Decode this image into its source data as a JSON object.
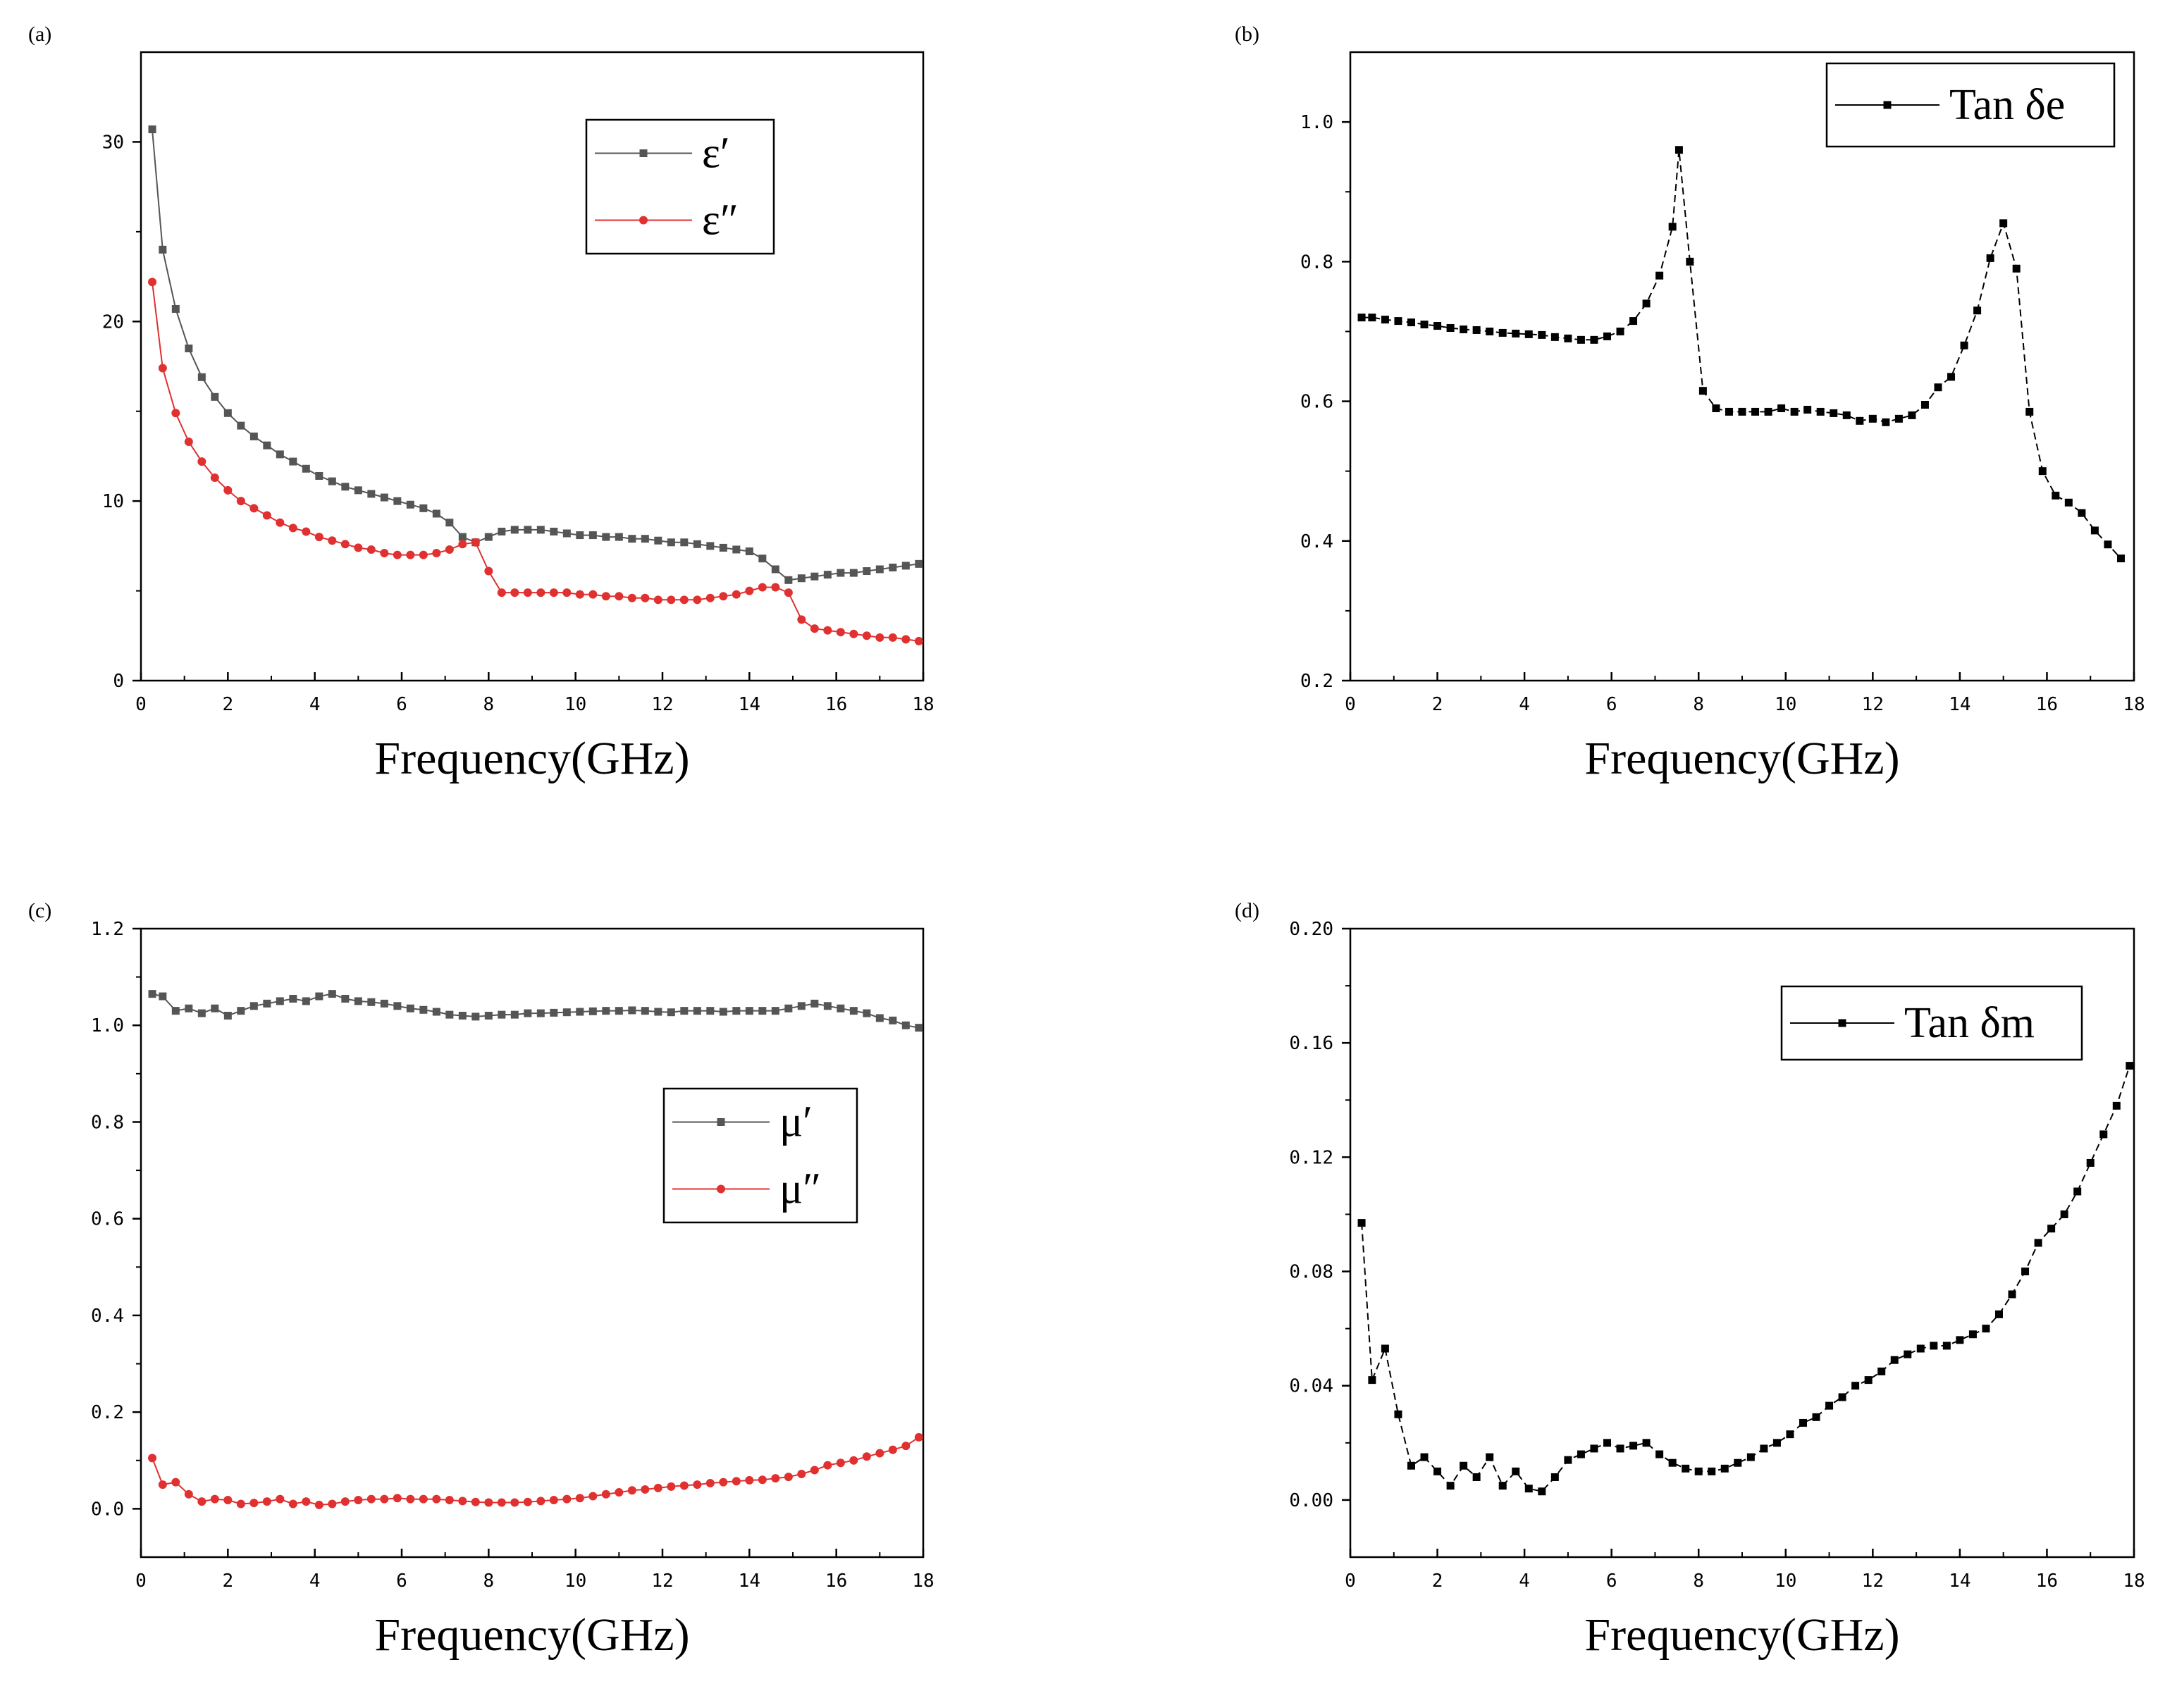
{
  "figure": {
    "colors": {
      "black_series": "#555555",
      "red_series": "#e03030",
      "axis": "#000000",
      "solid_black": "#000000"
    }
  },
  "chart_data": [
    {
      "panel_label": "(a)",
      "type": "line",
      "xlabel": "Frequency(GHz)",
      "ylabel": "",
      "xlim": [
        0,
        18
      ],
      "ylim": [
        0,
        35
      ],
      "xticks": [
        "0",
        "2",
        "4",
        "6",
        "8",
        "10",
        "12",
        "14",
        "16",
        "18"
      ],
      "yticks": [
        "0",
        "10",
        "20",
        "30"
      ],
      "legend_position": "top-center",
      "series": [
        {
          "name": "ε′",
          "color": "#555555",
          "marker": "square",
          "x": [
            0.26,
            0.5,
            0.8,
            1.1,
            1.4,
            1.7,
            2.0,
            2.3,
            2.6,
            2.9,
            3.2,
            3.5,
            3.8,
            4.1,
            4.4,
            4.7,
            5.0,
            5.3,
            5.6,
            5.9,
            6.2,
            6.5,
            6.8,
            7.1,
            7.4,
            7.7,
            8.0,
            8.3,
            8.6,
            8.9,
            9.2,
            9.5,
            9.8,
            10.1,
            10.4,
            10.7,
            11.0,
            11.3,
            11.6,
            11.9,
            12.2,
            12.5,
            12.8,
            13.1,
            13.4,
            13.7,
            14.0,
            14.3,
            14.6,
            14.9,
            15.2,
            15.5,
            15.8,
            16.1,
            16.4,
            16.7,
            17.0,
            17.3,
            17.6,
            17.9
          ],
          "values": [
            30.7,
            24.0,
            20.7,
            18.5,
            16.9,
            15.8,
            14.9,
            14.2,
            13.6,
            13.1,
            12.6,
            12.2,
            11.8,
            11.4,
            11.1,
            10.8,
            10.6,
            10.4,
            10.2,
            10.0,
            9.8,
            9.6,
            9.3,
            8.8,
            8.0,
            7.7,
            8.0,
            8.3,
            8.4,
            8.4,
            8.4,
            8.3,
            8.2,
            8.1,
            8.1,
            8.0,
            8.0,
            7.9,
            7.9,
            7.8,
            7.7,
            7.7,
            7.6,
            7.5,
            7.4,
            7.3,
            7.2,
            6.8,
            6.2,
            5.6,
            5.7,
            5.8,
            5.9,
            6.0,
            6.0,
            6.1,
            6.2,
            6.3,
            6.4,
            6.5
          ]
        },
        {
          "name": "ε″",
          "color": "#e03030",
          "marker": "circle",
          "x": [
            0.26,
            0.5,
            0.8,
            1.1,
            1.4,
            1.7,
            2.0,
            2.3,
            2.6,
            2.9,
            3.2,
            3.5,
            3.8,
            4.1,
            4.4,
            4.7,
            5.0,
            5.3,
            5.6,
            5.9,
            6.2,
            6.5,
            6.8,
            7.1,
            7.4,
            7.7,
            8.0,
            8.3,
            8.6,
            8.9,
            9.2,
            9.5,
            9.8,
            10.1,
            10.4,
            10.7,
            11.0,
            11.3,
            11.6,
            11.9,
            12.2,
            12.5,
            12.8,
            13.1,
            13.4,
            13.7,
            14.0,
            14.3,
            14.6,
            14.9,
            15.2,
            15.5,
            15.8,
            16.1,
            16.4,
            16.7,
            17.0,
            17.3,
            17.6,
            17.9
          ],
          "values": [
            22.2,
            17.4,
            14.9,
            13.3,
            12.2,
            11.3,
            10.6,
            10.0,
            9.6,
            9.2,
            8.8,
            8.5,
            8.3,
            8.0,
            7.8,
            7.6,
            7.4,
            7.3,
            7.1,
            7.0,
            7.0,
            7.0,
            7.1,
            7.3,
            7.6,
            7.7,
            6.1,
            4.9,
            4.9,
            4.9,
            4.9,
            4.9,
            4.9,
            4.8,
            4.8,
            4.7,
            4.7,
            4.6,
            4.6,
            4.5,
            4.5,
            4.5,
            4.5,
            4.6,
            4.7,
            4.8,
            5.0,
            5.2,
            5.2,
            4.9,
            3.4,
            2.9,
            2.8,
            2.7,
            2.6,
            2.5,
            2.4,
            2.4,
            2.3,
            2.2
          ]
        }
      ]
    },
    {
      "panel_label": "(b)",
      "type": "line",
      "xlabel": "Frequency(GHz)",
      "ylabel": "",
      "xlim": [
        0,
        18
      ],
      "ylim": [
        0.2,
        1.1
      ],
      "xticks": [
        "0",
        "2",
        "4",
        "6",
        "8",
        "10",
        "12",
        "14",
        "16",
        "18"
      ],
      "yticks": [
        "0.2",
        "0.4",
        "0.6",
        "0.8",
        "1.0"
      ],
      "legend_position": "top-right",
      "series": [
        {
          "name": "Tan δe",
          "color": "#000000",
          "marker": "square",
          "x": [
            0.26,
            0.5,
            0.8,
            1.1,
            1.4,
            1.7,
            2.0,
            2.3,
            2.6,
            2.9,
            3.2,
            3.5,
            3.8,
            4.1,
            4.4,
            4.7,
            5.0,
            5.3,
            5.6,
            5.9,
            6.2,
            6.5,
            6.8,
            7.1,
            7.4,
            7.55,
            7.8,
            8.1,
            8.4,
            8.7,
            9.0,
            9.3,
            9.6,
            9.9,
            10.2,
            10.5,
            10.8,
            11.1,
            11.4,
            11.7,
            12.0,
            12.3,
            12.6,
            12.9,
            13.2,
            13.5,
            13.8,
            14.1,
            14.4,
            14.7,
            15.0,
            15.3,
            15.6,
            15.9,
            16.2,
            16.5,
            16.8,
            17.1,
            17.4,
            17.7
          ],
          "values": [
            0.72,
            0.72,
            0.717,
            0.715,
            0.713,
            0.71,
            0.708,
            0.705,
            0.703,
            0.702,
            0.7,
            0.698,
            0.697,
            0.696,
            0.695,
            0.692,
            0.69,
            0.688,
            0.688,
            0.693,
            0.7,
            0.715,
            0.74,
            0.78,
            0.85,
            0.96,
            0.8,
            0.615,
            0.59,
            0.585,
            0.585,
            0.585,
            0.585,
            0.59,
            0.585,
            0.588,
            0.585,
            0.583,
            0.58,
            0.572,
            0.575,
            0.57,
            0.575,
            0.58,
            0.595,
            0.62,
            0.635,
            0.68,
            0.73,
            0.805,
            0.855,
            0.79,
            0.585,
            0.5,
            0.465,
            0.455,
            0.44,
            0.415,
            0.395,
            0.375
          ]
        }
      ]
    },
    {
      "panel_label": "(c)",
      "type": "line",
      "xlabel": "Frequency(GHz)",
      "ylabel": "",
      "xlim": [
        0,
        18
      ],
      "ylim": [
        -0.1,
        1.2
      ],
      "xticks": [
        "0",
        "2",
        "4",
        "6",
        "8",
        "10",
        "12",
        "14",
        "16",
        "18"
      ],
      "yticks": [
        "0.0",
        "0.2",
        "0.4",
        "0.6",
        "0.8",
        "1.0",
        "1.2"
      ],
      "legend_position": "center-right",
      "series": [
        {
          "name": "μ′",
          "color": "#555555",
          "marker": "square",
          "x": [
            0.26,
            0.5,
            0.8,
            1.1,
            1.4,
            1.7,
            2.0,
            2.3,
            2.6,
            2.9,
            3.2,
            3.5,
            3.8,
            4.1,
            4.4,
            4.7,
            5.0,
            5.3,
            5.6,
            5.9,
            6.2,
            6.5,
            6.8,
            7.1,
            7.4,
            7.7,
            8.0,
            8.3,
            8.6,
            8.9,
            9.2,
            9.5,
            9.8,
            10.1,
            10.4,
            10.7,
            11.0,
            11.3,
            11.6,
            11.9,
            12.2,
            12.5,
            12.8,
            13.1,
            13.4,
            13.7,
            14.0,
            14.3,
            14.6,
            14.9,
            15.2,
            15.5,
            15.8,
            16.1,
            16.4,
            16.7,
            17.0,
            17.3,
            17.6,
            17.9
          ],
          "values": [
            1.065,
            1.06,
            1.03,
            1.035,
            1.025,
            1.035,
            1.02,
            1.03,
            1.04,
            1.045,
            1.05,
            1.055,
            1.05,
            1.06,
            1.065,
            1.055,
            1.05,
            1.048,
            1.045,
            1.04,
            1.035,
            1.032,
            1.028,
            1.022,
            1.02,
            1.018,
            1.02,
            1.022,
            1.022,
            1.025,
            1.025,
            1.026,
            1.027,
            1.028,
            1.029,
            1.03,
            1.03,
            1.031,
            1.03,
            1.028,
            1.027,
            1.03,
            1.03,
            1.03,
            1.028,
            1.03,
            1.03,
            1.03,
            1.03,
            1.035,
            1.04,
            1.045,
            1.04,
            1.035,
            1.03,
            1.025,
            1.015,
            1.01,
            1.0,
            0.995
          ]
        },
        {
          "name": "μ″",
          "color": "#e03030",
          "marker": "circle",
          "x": [
            0.26,
            0.5,
            0.8,
            1.1,
            1.4,
            1.7,
            2.0,
            2.3,
            2.6,
            2.9,
            3.2,
            3.5,
            3.8,
            4.1,
            4.4,
            4.7,
            5.0,
            5.3,
            5.6,
            5.9,
            6.2,
            6.5,
            6.8,
            7.1,
            7.4,
            7.7,
            8.0,
            8.3,
            8.6,
            8.9,
            9.2,
            9.5,
            9.8,
            10.1,
            10.4,
            10.7,
            11.0,
            11.3,
            11.6,
            11.9,
            12.2,
            12.5,
            12.8,
            13.1,
            13.4,
            13.7,
            14.0,
            14.3,
            14.6,
            14.9,
            15.2,
            15.5,
            15.8,
            16.1,
            16.4,
            16.7,
            17.0,
            17.3,
            17.6,
            17.9
          ],
          "values": [
            0.105,
            0.05,
            0.055,
            0.03,
            0.015,
            0.02,
            0.018,
            0.01,
            0.012,
            0.015,
            0.02,
            0.01,
            0.015,
            0.008,
            0.01,
            0.015,
            0.018,
            0.02,
            0.02,
            0.022,
            0.02,
            0.02,
            0.02,
            0.018,
            0.016,
            0.014,
            0.013,
            0.013,
            0.013,
            0.014,
            0.016,
            0.018,
            0.02,
            0.022,
            0.026,
            0.03,
            0.034,
            0.038,
            0.04,
            0.043,
            0.046,
            0.048,
            0.05,
            0.053,
            0.055,
            0.057,
            0.059,
            0.06,
            0.063,
            0.066,
            0.072,
            0.08,
            0.09,
            0.095,
            0.1,
            0.108,
            0.115,
            0.122,
            0.13,
            0.148
          ]
        }
      ]
    },
    {
      "panel_label": "(d)",
      "type": "line",
      "xlabel": "Frequency(GHz)",
      "ylabel": "",
      "xlim": [
        0,
        18
      ],
      "ylim": [
        -0.02,
        0.2
      ],
      "xticks": [
        "0",
        "2",
        "4",
        "6",
        "8",
        "10",
        "12",
        "14",
        "16",
        "18"
      ],
      "yticks": [
        "0.00",
        "0.04",
        "0.08",
        "0.12",
        "0.16",
        "0.20"
      ],
      "legend_position": "top-right",
      "series": [
        {
          "name": "Tan δm",
          "color": "#000000",
          "marker": "square",
          "x": [
            0.26,
            0.5,
            0.8,
            1.1,
            1.4,
            1.7,
            2.0,
            2.3,
            2.6,
            2.9,
            3.2,
            3.5,
            3.8,
            4.1,
            4.4,
            4.7,
            5.0,
            5.3,
            5.6,
            5.9,
            6.2,
            6.5,
            6.8,
            7.1,
            7.4,
            7.7,
            8.0,
            8.3,
            8.6,
            8.9,
            9.2,
            9.5,
            9.8,
            10.1,
            10.4,
            10.7,
            11.0,
            11.3,
            11.6,
            11.9,
            12.2,
            12.5,
            12.8,
            13.1,
            13.4,
            13.7,
            14.0,
            14.3,
            14.6,
            14.9,
            15.2,
            15.5,
            15.8,
            16.1,
            16.4,
            16.7,
            17.0,
            17.3,
            17.6,
            17.9
          ],
          "values": [
            0.097,
            0.042,
            0.053,
            0.03,
            0.012,
            0.015,
            0.01,
            0.005,
            0.012,
            0.008,
            0.015,
            0.005,
            0.01,
            0.004,
            0.003,
            0.008,
            0.014,
            0.016,
            0.018,
            0.02,
            0.018,
            0.019,
            0.02,
            0.016,
            0.013,
            0.011,
            0.01,
            0.01,
            0.011,
            0.013,
            0.015,
            0.018,
            0.02,
            0.023,
            0.027,
            0.029,
            0.033,
            0.036,
            0.04,
            0.042,
            0.045,
            0.049,
            0.051,
            0.053,
            0.054,
            0.054,
            0.056,
            0.058,
            0.06,
            0.065,
            0.072,
            0.08,
            0.09,
            0.095,
            0.1,
            0.108,
            0.118,
            0.128,
            0.138,
            0.152
          ]
        }
      ]
    }
  ]
}
